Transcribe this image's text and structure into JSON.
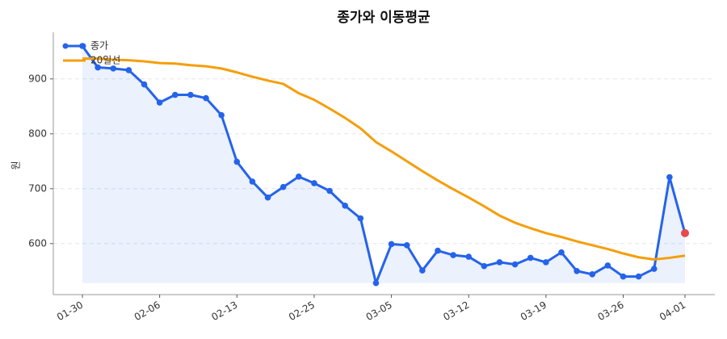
{
  "chart_data": {
    "type": "line",
    "title": "종가와 이동평균",
    "y_label": "원",
    "categories": [
      "01-30",
      null,
      null,
      null,
      null,
      "02-06",
      null,
      null,
      null,
      null,
      "02-13",
      null,
      null,
      null,
      null,
      "02-25",
      null,
      null,
      null,
      null,
      "03-05",
      null,
      null,
      null,
      null,
      "03-12",
      null,
      null,
      null,
      null,
      "03-19",
      null,
      null,
      null,
      null,
      "03-26",
      null,
      null,
      null,
      "04-01"
    ],
    "series": [
      {
        "name": "종가",
        "color": "#2563eb",
        "markers": true,
        "fill": true,
        "last_point_color": "#e5484d",
        "values": [
          960,
          921,
          919,
          916,
          890,
          857,
          871,
          871,
          865,
          834,
          749,
          713,
          684,
          703,
          722,
          710,
          696,
          669,
          646,
          528,
          599,
          597,
          551,
          587,
          579,
          576,
          559,
          566,
          562,
          574,
          566,
          584,
          550,
          544,
          560,
          540,
          540,
          554,
          721,
          619
        ]
      },
      {
        "name": "20일선",
        "color": "#f59e0b",
        "markers": false,
        "fill": false,
        "values": [
          937,
          937,
          935,
          934,
          932,
          929,
          928,
          925,
          923,
          919,
          912,
          904,
          897,
          891,
          874,
          862,
          846,
          829,
          810,
          785,
          768,
          750,
          732,
          715,
          699,
          684,
          668,
          651,
          638,
          628,
          619,
          612,
          604,
          597,
          590,
          582,
          575,
          571,
          574,
          578
        ]
      }
    ],
    "ylim": [
      507,
      985
    ],
    "yticks": [
      600,
      700,
      800,
      900
    ],
    "grid": true,
    "legend": "upper left"
  }
}
